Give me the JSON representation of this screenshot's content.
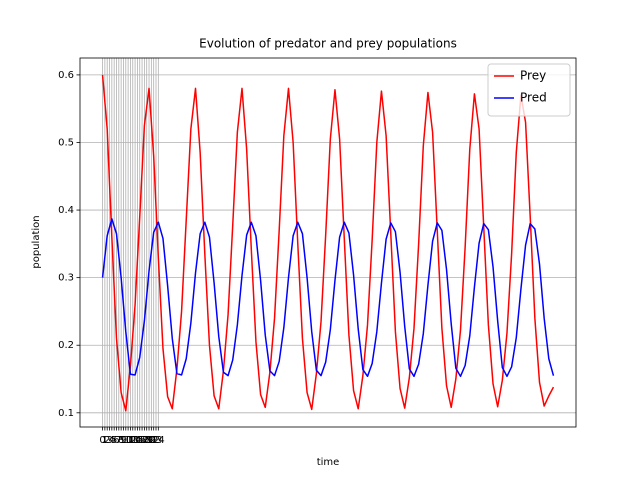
{
  "chart_data": {
    "type": "line",
    "title": "Evolution of predator and prey populations",
    "xlabel": "time",
    "ylabel": "population",
    "x": [
      0,
      2,
      4,
      6,
      8,
      10,
      12,
      14,
      16,
      18,
      20,
      22,
      24,
      26,
      28,
      30,
      32,
      34,
      36,
      38,
      40,
      42,
      44,
      46,
      48,
      50,
      52,
      54,
      56,
      58,
      60,
      62,
      64,
      66,
      68,
      70,
      72,
      74,
      76,
      78,
      80,
      82,
      84,
      86,
      88,
      90,
      92,
      94,
      96,
      98,
      100,
      102,
      104,
      106,
      108,
      110,
      112,
      114,
      116,
      118,
      120,
      122,
      124,
      126,
      128,
      130,
      132,
      134,
      136,
      138,
      140,
      142,
      144,
      146,
      148,
      150,
      152,
      154,
      156,
      158,
      160,
      162,
      164,
      166,
      168,
      170,
      172,
      174,
      176,
      178,
      180,
      182,
      184,
      186,
      188,
      190,
      192,
      194
    ],
    "series": [
      {
        "name": "Prey",
        "color": "#ff0000",
        "values": [
          0.6,
          0.52,
          0.36,
          0.21,
          0.13,
          0.103,
          0.17,
          0.26,
          0.39,
          0.525,
          0.58,
          0.48,
          0.33,
          0.195,
          0.124,
          0.106,
          0.165,
          0.25,
          0.385,
          0.52,
          0.58,
          0.485,
          0.335,
          0.2,
          0.125,
          0.106,
          0.162,
          0.245,
          0.377,
          0.515,
          0.58,
          0.49,
          0.342,
          0.205,
          0.127,
          0.108,
          0.16,
          0.24,
          0.37,
          0.51,
          0.58,
          0.5,
          0.35,
          0.21,
          0.13,
          0.105,
          0.158,
          0.235,
          0.363,
          0.505,
          0.578,
          0.505,
          0.358,
          0.215,
          0.133,
          0.106,
          0.155,
          0.23,
          0.356,
          0.5,
          0.576,
          0.51,
          0.366,
          0.22,
          0.136,
          0.107,
          0.152,
          0.225,
          0.35,
          0.495,
          0.574,
          0.515,
          0.37,
          0.225,
          0.14,
          0.108,
          0.15,
          0.222,
          0.345,
          0.49,
          0.572,
          0.52,
          0.375,
          0.23,
          0.143,
          0.109,
          0.148,
          0.218,
          0.335,
          0.485,
          0.57,
          0.53,
          0.39,
          0.24,
          0.145,
          0.11,
          0.125,
          0.138
        ]
      },
      {
        "name": "Pred",
        "color": "#0000ff",
        "values": [
          0.3,
          0.362,
          0.387,
          0.365,
          0.3,
          0.22,
          0.157,
          0.156,
          0.182,
          0.236,
          0.31,
          0.367,
          0.382,
          0.358,
          0.288,
          0.21,
          0.158,
          0.156,
          0.18,
          0.233,
          0.307,
          0.365,
          0.382,
          0.36,
          0.292,
          0.213,
          0.16,
          0.155,
          0.178,
          0.23,
          0.303,
          0.363,
          0.382,
          0.362,
          0.296,
          0.215,
          0.162,
          0.155,
          0.176,
          0.226,
          0.3,
          0.362,
          0.382,
          0.365,
          0.3,
          0.22,
          0.163,
          0.155,
          0.175,
          0.223,
          0.296,
          0.36,
          0.382,
          0.366,
          0.304,
          0.224,
          0.164,
          0.154,
          0.173,
          0.22,
          0.292,
          0.357,
          0.381,
          0.368,
          0.308,
          0.228,
          0.165,
          0.154,
          0.172,
          0.217,
          0.289,
          0.354,
          0.381,
          0.37,
          0.312,
          0.232,
          0.166,
          0.154,
          0.17,
          0.214,
          0.286,
          0.351,
          0.38,
          0.371,
          0.316,
          0.236,
          0.167,
          0.154,
          0.168,
          0.211,
          0.283,
          0.348,
          0.38,
          0.372,
          0.32,
          0.24,
          0.18,
          0.155
        ]
      }
    ],
    "xlim": [
      -9.7,
      203.7
    ],
    "ylim": [
      0.079,
      0.625
    ],
    "xticks": [
      0,
      1,
      2,
      3,
      4,
      5,
      6,
      7,
      8,
      9,
      10,
      11,
      12,
      13,
      14,
      15,
      16,
      17,
      18,
      19,
      20,
      21,
      22,
      23,
      24
    ],
    "yticks": [
      0.1,
      0.2,
      0.3,
      0.4,
      0.5,
      0.6
    ],
    "grid": true,
    "legend": "upper right"
  }
}
